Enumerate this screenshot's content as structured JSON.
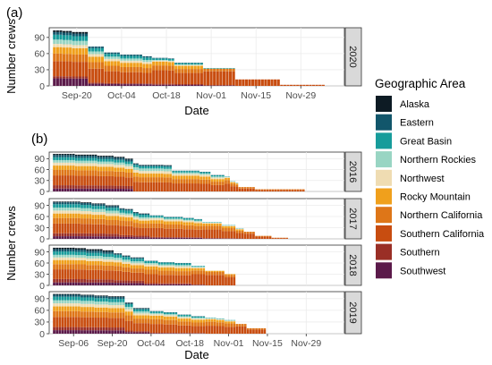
{
  "figure": {
    "panel_a_label": "(a)",
    "panel_b_label": "(b)",
    "legend_title": "Geographic Area"
  },
  "areas": [
    {
      "name": "Alaska",
      "color": "#0d1b24"
    },
    {
      "name": "Eastern",
      "color": "#12566b"
    },
    {
      "name": "Great Basin",
      "color": "#179c9b"
    },
    {
      "name": "Northern Rockies",
      "color": "#99d5c3"
    },
    {
      "name": "Northwest",
      "color": "#efdcb2"
    },
    {
      "name": "Rocky Mountain",
      "color": "#f0a01c"
    },
    {
      "name": "Northern California",
      "color": "#de7618"
    },
    {
      "name": "Southern California",
      "color": "#c84d10"
    },
    {
      "name": "Southern",
      "color": "#9a2f26"
    },
    {
      "name": "Southwest",
      "color": "#5b1a4a"
    }
  ],
  "chart_data": [
    {
      "type": "bar",
      "stacked": true,
      "panel": "(a)",
      "facet": "2020",
      "xlabel": "Date",
      "ylabel": "Number crews",
      "x_ticks": [
        "Sep-20",
        "Oct-04",
        "Oct-18",
        "Nov-01",
        "Nov-15",
        "Nov-29"
      ],
      "y_ticks": [
        0,
        30,
        60,
        90
      ],
      "ylim": [
        0,
        108
      ],
      "x_start": "Sep-13",
      "days": 90,
      "totals_by_day": "steps",
      "total_steps": [
        [
          0,
          103
        ],
        [
          3,
          102
        ],
        [
          6,
          100
        ],
        [
          11,
          73
        ],
        [
          16,
          62
        ],
        [
          21,
          58
        ],
        [
          28,
          55
        ],
        [
          31,
          52
        ],
        [
          36,
          51
        ],
        [
          38,
          43
        ],
        [
          47,
          33
        ],
        [
          57,
          12
        ],
        [
          71,
          2
        ],
        [
          85,
          0
        ]
      ],
      "composition_steps": [
        [
          0,
          [
            3,
            5,
            9,
            8,
            6,
            12,
            14,
            28,
            4,
            14
          ]
        ],
        [
          11,
          [
            0,
            3,
            6,
            5,
            5,
            10,
            12,
            26,
            2,
            4
          ]
        ],
        [
          31,
          [
            0,
            1,
            3,
            1,
            2,
            7,
            9,
            25,
            2,
            2
          ]
        ],
        [
          47,
          [
            0,
            0,
            1,
            0,
            0,
            0,
            5,
            26,
            0,
            1
          ]
        ],
        [
          57,
          [
            0,
            0,
            0,
            0,
            0,
            0,
            0,
            12,
            0,
            0
          ]
        ]
      ]
    },
    {
      "type": "bar",
      "stacked": true,
      "panel": "(b)",
      "facet": "2016",
      "xlabel": "Date",
      "ylabel": "Number crews",
      "x_ticks": [
        "Sep-06",
        "Sep-20",
        "Oct-04",
        "Oct-18",
        "Nov-01",
        "Nov-15",
        "Nov-29"
      ],
      "y_ticks": [
        0,
        30,
        60,
        90
      ],
      "ylim": [
        0,
        108
      ],
      "x_start": "Aug-30",
      "days": 104,
      "total_steps": [
        [
          0,
          103
        ],
        [
          8,
          101
        ],
        [
          16,
          98
        ],
        [
          22,
          95
        ],
        [
          26,
          90
        ],
        [
          29,
          77
        ],
        [
          31,
          73
        ],
        [
          40,
          72
        ],
        [
          43,
          57
        ],
        [
          53,
          54
        ],
        [
          57,
          45
        ],
        [
          62,
          41
        ],
        [
          64,
          28
        ],
        [
          66,
          24
        ],
        [
          67,
          12
        ],
        [
          73,
          6
        ],
        [
          91,
          0
        ]
      ],
      "composition_steps": [
        [
          0,
          [
            3,
            6,
            8,
            7,
            8,
            12,
            15,
            27,
            9,
            8
          ]
        ],
        [
          29,
          [
            1,
            3,
            6,
            7,
            7,
            10,
            14,
            25,
            0,
            0
          ]
        ],
        [
          43,
          [
            0,
            1,
            4,
            4,
            5,
            9,
            12,
            22,
            0,
            0
          ]
        ],
        [
          62,
          [
            0,
            0,
            1,
            1,
            2,
            6,
            10,
            21,
            0,
            0
          ]
        ],
        [
          67,
          [
            0,
            0,
            0,
            0,
            0,
            0,
            4,
            8,
            0,
            0
          ]
        ]
      ]
    },
    {
      "type": "bar",
      "stacked": true,
      "panel": "(b)",
      "facet": "2017",
      "xlabel": "Date",
      "ylabel": "Number crews",
      "x_ticks": [
        "Sep-06",
        "Sep-20",
        "Oct-04",
        "Oct-18",
        "Nov-01",
        "Nov-15",
        "Nov-29"
      ],
      "y_ticks": [
        0,
        30,
        60,
        90
      ],
      "ylim": [
        0,
        108
      ],
      "x_start": "Aug-30",
      "days": 104,
      "total_steps": [
        [
          0,
          100
        ],
        [
          10,
          98
        ],
        [
          14,
          95
        ],
        [
          19,
          90
        ],
        [
          24,
          82
        ],
        [
          26,
          80
        ],
        [
          29,
          72
        ],
        [
          31,
          68
        ],
        [
          35,
          63
        ],
        [
          40,
          59
        ],
        [
          47,
          56
        ],
        [
          51,
          53
        ],
        [
          54,
          45
        ],
        [
          61,
          37
        ],
        [
          66,
          28
        ],
        [
          69,
          19
        ],
        [
          73,
          8
        ],
        [
          79,
          3
        ],
        [
          85,
          0
        ]
      ],
      "composition_steps": [
        [
          0,
          [
            2,
            5,
            9,
            8,
            8,
            12,
            15,
            26,
            8,
            7
          ]
        ],
        [
          24,
          [
            1,
            3,
            8,
            5,
            6,
            10,
            14,
            25,
            5,
            5
          ]
        ],
        [
          35,
          [
            0,
            1,
            4,
            3,
            5,
            9,
            12,
            24,
            2,
            3
          ]
        ],
        [
          54,
          [
            0,
            0,
            1,
            1,
            2,
            6,
            10,
            23,
            1,
            1
          ]
        ],
        [
          69,
          [
            0,
            0,
            0,
            0,
            0,
            0,
            5,
            14,
            0,
            0
          ]
        ]
      ]
    },
    {
      "type": "bar",
      "stacked": true,
      "panel": "(b)",
      "facet": "2018",
      "xlabel": "Date",
      "ylabel": "Number crews",
      "x_ticks": [
        "Sep-06",
        "Sep-20",
        "Oct-04",
        "Oct-18",
        "Nov-01",
        "Nov-15",
        "Nov-29"
      ],
      "y_ticks": [
        0,
        30,
        60,
        90
      ],
      "ylim": [
        0,
        108
      ],
      "x_start": "Aug-30",
      "days": 104,
      "total_steps": [
        [
          0,
          101
        ],
        [
          8,
          100
        ],
        [
          12,
          97
        ],
        [
          18,
          94
        ],
        [
          22,
          86
        ],
        [
          25,
          80
        ],
        [
          28,
          75
        ],
        [
          33,
          66
        ],
        [
          38,
          62
        ],
        [
          44,
          60
        ],
        [
          50,
          52
        ],
        [
          55,
          40
        ],
        [
          62,
          31
        ],
        [
          66,
          0
        ]
      ],
      "composition_steps": [
        [
          0,
          [
            4,
            6,
            9,
            7,
            7,
            11,
            14,
            26,
            9,
            8
          ]
        ],
        [
          22,
          [
            1,
            3,
            8,
            6,
            6,
            10,
            13,
            25,
            7,
            7
          ]
        ],
        [
          33,
          [
            0,
            1,
            5,
            4,
            5,
            9,
            12,
            24,
            3,
            3
          ]
        ],
        [
          50,
          [
            0,
            0,
            2,
            2,
            2,
            6,
            10,
            28,
            1,
            1
          ]
        ],
        [
          55,
          [
            0,
            0,
            0,
            0,
            1,
            3,
            8,
            28,
            0,
            0
          ]
        ]
      ]
    },
    {
      "type": "bar",
      "stacked": true,
      "panel": "(b)",
      "facet": "2019",
      "xlabel": "Date",
      "ylabel": "Number crews",
      "x_ticks": [
        "Sep-06",
        "Sep-20",
        "Oct-04",
        "Oct-18",
        "Nov-01",
        "Nov-15",
        "Nov-29"
      ],
      "y_ticks": [
        0,
        30,
        60,
        90
      ],
      "ylim": [
        0,
        108
      ],
      "x_start": "Aug-30",
      "days": 104,
      "total_steps": [
        [
          0,
          102
        ],
        [
          10,
          100
        ],
        [
          15,
          98
        ],
        [
          20,
          96
        ],
        [
          26,
          80
        ],
        [
          29,
          66
        ],
        [
          35,
          58
        ],
        [
          40,
          55
        ],
        [
          45,
          49
        ],
        [
          50,
          45
        ],
        [
          55,
          41
        ],
        [
          59,
          39
        ],
        [
          62,
          35
        ],
        [
          66,
          25
        ],
        [
          70,
          14
        ],
        [
          77,
          0
        ]
      ],
      "composition_steps": [
        [
          0,
          [
            2,
            5,
            9,
            8,
            8,
            12,
            15,
            26,
            8,
            9
          ]
        ],
        [
          26,
          [
            1,
            3,
            7,
            6,
            6,
            10,
            14,
            25,
            4,
            4
          ]
        ],
        [
          35,
          [
            0,
            1,
            4,
            3,
            4,
            9,
            12,
            23,
            1,
            1
          ]
        ],
        [
          55,
          [
            0,
            0,
            1,
            1,
            2,
            6,
            10,
            20,
            0,
            0
          ]
        ],
        [
          66,
          [
            0,
            0,
            0,
            0,
            0,
            0,
            5,
            15,
            0,
            0
          ]
        ]
      ]
    }
  ]
}
